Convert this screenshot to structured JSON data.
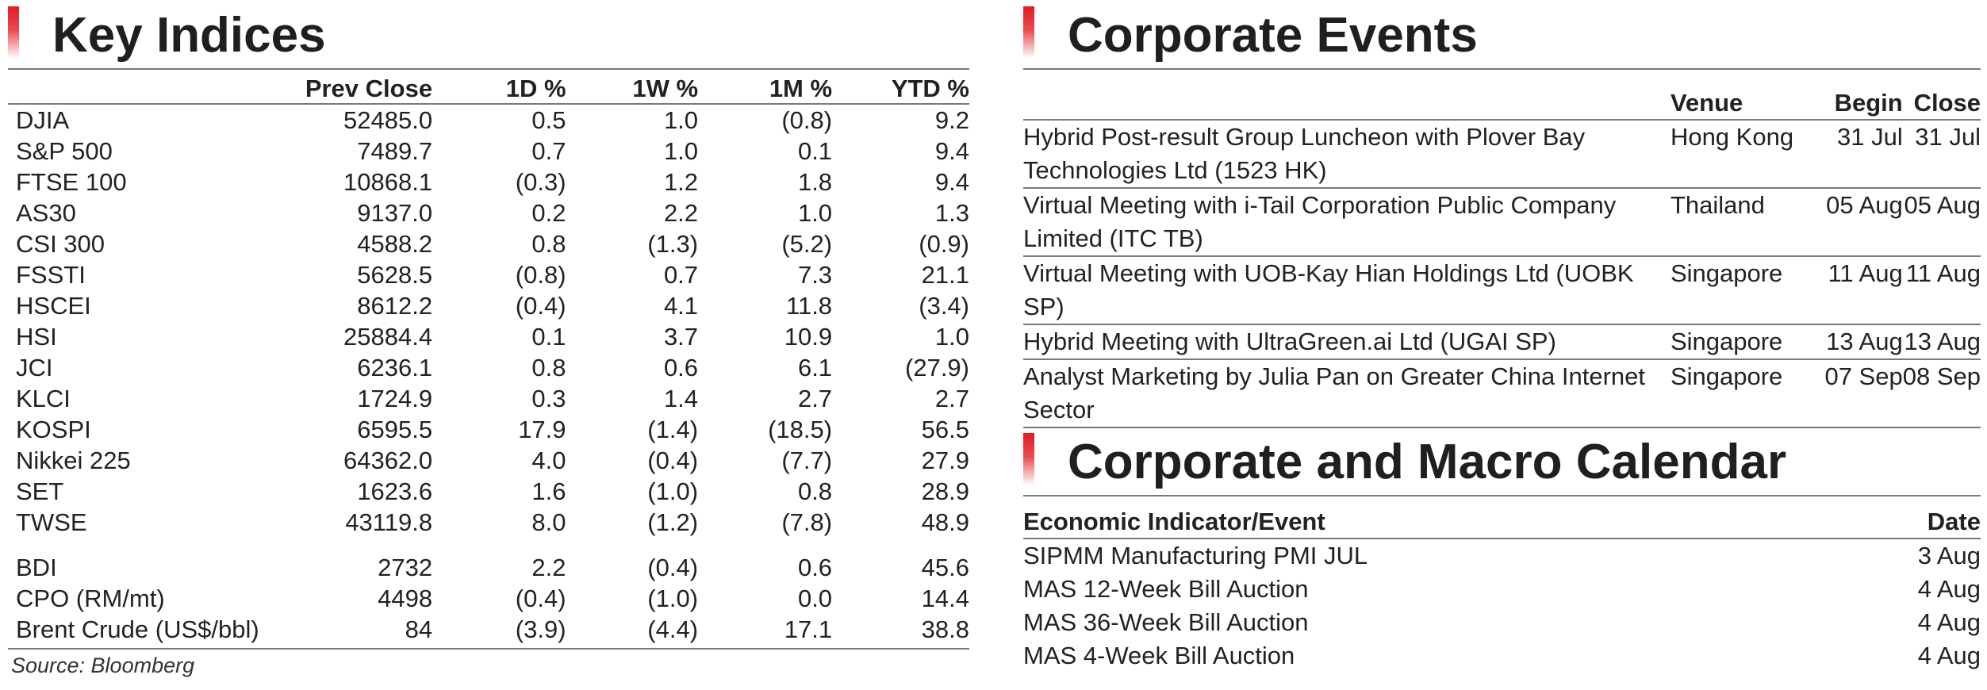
{
  "key_indices": {
    "title": "Key Indices",
    "headers": [
      "",
      "Prev Close",
      "1D %",
      "1W %",
      "1M %",
      "YTD %"
    ],
    "rows": [
      [
        "DJIA",
        "52485.0",
        "0.5",
        "1.0",
        "(0.8)",
        "9.2"
      ],
      [
        "S&P 500",
        "7489.7",
        "0.7",
        "1.0",
        "0.1",
        "9.4"
      ],
      [
        "FTSE 100",
        "10868.1",
        "(0.3)",
        "1.2",
        "1.8",
        "9.4"
      ],
      [
        "AS30",
        "9137.0",
        "0.2",
        "2.2",
        "1.0",
        "1.3"
      ],
      [
        "CSI 300",
        "4588.2",
        "0.8",
        "(1.3)",
        "(5.2)",
        "(0.9)"
      ],
      [
        "FSSTI",
        "5628.5",
        "(0.8)",
        "0.7",
        "7.3",
        "21.1"
      ],
      [
        "HSCEI",
        "8612.2",
        "(0.4)",
        "4.1",
        "11.8",
        "(3.4)"
      ],
      [
        "HSI",
        "25884.4",
        "0.1",
        "3.7",
        "10.9",
        "1.0"
      ],
      [
        "JCI",
        "6236.1",
        "0.8",
        "0.6",
        "6.1",
        "(27.9)"
      ],
      [
        "KLCI",
        "1724.9",
        "0.3",
        "1.4",
        "2.7",
        "2.7"
      ],
      [
        "KOSPI",
        "6595.5",
        "17.9",
        "(1.4)",
        "(18.5)",
        "56.5"
      ],
      [
        "Nikkei 225",
        "64362.0",
        "4.0",
        "(0.4)",
        "(7.7)",
        "27.9"
      ],
      [
        "SET",
        "1623.6",
        "1.6",
        "(1.0)",
        "0.8",
        "28.9"
      ],
      [
        "TWSE",
        "43119.8",
        "8.0",
        "(1.2)",
        "(7.8)",
        "48.9"
      ]
    ],
    "commodity_rows": [
      [
        "BDI",
        "2732",
        "2.2",
        "(0.4)",
        "0.6",
        "45.6"
      ],
      [
        "CPO (RM/mt)",
        "4498",
        "(0.4)",
        "(1.0)",
        "0.0",
        "14.4"
      ],
      [
        "Brent Crude (US$/bbl)",
        "84",
        "(3.9)",
        "(4.4)",
        "17.1",
        "38.8"
      ]
    ],
    "source": "Source: Bloomberg"
  },
  "corporate_events": {
    "title": "Corporate Events",
    "headers": [
      "",
      "Venue",
      "Begin",
      "Close"
    ],
    "rows": [
      [
        "Hybrid Post-result Group Luncheon with Plover Bay Technologies Ltd (1523 HK)",
        "Hong Kong",
        "31 Jul",
        "31 Jul"
      ],
      [
        "Virtual Meeting with i-Tail Corporation Public Company Limited (ITC TB)",
        "Thailand",
        "05 Aug",
        "05 Aug"
      ],
      [
        "Virtual Meeting with UOB-Kay Hian Holdings Ltd (UOBK SP)",
        "Singapore",
        "11 Aug",
        "11 Aug"
      ],
      [
        "Hybrid Meeting with UltraGreen.ai Ltd (UGAI SP)",
        "Singapore",
        "13 Aug",
        "13 Aug"
      ],
      [
        "Analyst Marketing by Julia Pan on Greater China Internet Sector",
        "Singapore",
        "07 Sep",
        "08 Sep"
      ]
    ]
  },
  "calendar": {
    "title": "Corporate and Macro Calendar",
    "headers": [
      "Economic Indicator/Event",
      "Date"
    ],
    "rows": [
      [
        "SIPMM Manufacturing PMI JUL",
        "3 Aug"
      ],
      [
        "MAS 12-Week Bill Auction",
        "4 Aug"
      ],
      [
        "MAS 36-Week Bill Auction",
        "4 Aug"
      ],
      [
        "MAS 4-Week Bill Auction",
        "4 Aug"
      ]
    ]
  },
  "colors": {
    "accent_red": "#e21b23",
    "rule_gray": "#7a7a7a"
  }
}
